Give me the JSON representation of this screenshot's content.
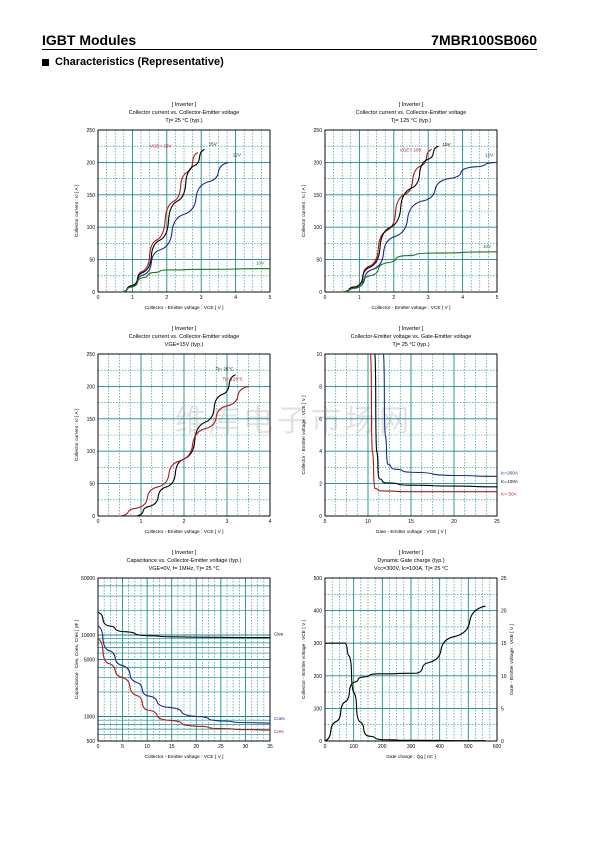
{
  "header": {
    "left": "IGBT Modules",
    "right": "7MBR100SB060"
  },
  "section_title": "Characteristics (Representative)",
  "watermark": "维库电子市场网",
  "colors": {
    "grid": "#1a8a8a",
    "blue": "#1a2a8c",
    "red": "#b01818",
    "green": "#1a7a1a",
    "black": "#000000"
  },
  "chart_data": [
    {
      "type": "line",
      "title": [
        "[ Inverter ]",
        "Collector current  vs.  Collector-Emitter voltage",
        "Tj= 25 °C  (typ.)"
      ],
      "xlabel": "Collector - Emitter voltage  :  VCE  [ V ]",
      "ylabel": "Collector current  :  Ic  [ A ]",
      "xlim": [
        0,
        5
      ],
      "ylim": [
        0,
        250
      ],
      "xticks": [
        0,
        1,
        2,
        3,
        4,
        5
      ],
      "yticks": [
        0,
        50,
        100,
        150,
        200,
        250
      ],
      "grid": true,
      "series": [
        {
          "name": "VGE= 20V",
          "color": "red",
          "points": [
            [
              0.7,
              0
            ],
            [
              1.0,
              10
            ],
            [
              1.3,
              32
            ],
            [
              1.7,
              80
            ],
            [
              2.2,
              140
            ],
            [
              2.6,
              185
            ],
            [
              2.9,
              215
            ]
          ]
        },
        {
          "name": "15V",
          "color": "black",
          "points": [
            [
              0.7,
              0
            ],
            [
              1.0,
              10
            ],
            [
              1.3,
              30
            ],
            [
              1.8,
              80
            ],
            [
              2.3,
              140
            ],
            [
              2.8,
              195
            ],
            [
              3.1,
              220
            ]
          ]
        },
        {
          "name": "12V",
          "color": "blue",
          "points": [
            [
              0.7,
              0
            ],
            [
              1.0,
              8
            ],
            [
              1.3,
              26
            ],
            [
              1.8,
              65
            ],
            [
              2.5,
              120
            ],
            [
              3.2,
              170
            ],
            [
              3.8,
              200
            ]
          ]
        },
        {
          "name": "10V",
          "color": "green",
          "points": [
            [
              0.7,
              0
            ],
            [
              1.0,
              8
            ],
            [
              1.3,
              22
            ],
            [
              1.6,
              30
            ],
            [
              2.0,
              34
            ],
            [
              3.0,
              35
            ],
            [
              5.0,
              36
            ]
          ]
        }
      ]
    },
    {
      "type": "line",
      "title": [
        "[ Inverter ]",
        "Collector current  vs.  Collector-Emitter voltage",
        "Tj= 125 °C  (typ.)"
      ],
      "xlabel": "Collector - Emitter voltage  :  VCE  [ V ]",
      "ylabel": "Collector current  :  Ic  [ A ]",
      "xlim": [
        0,
        5
      ],
      "ylim": [
        0,
        250
      ],
      "xticks": [
        0,
        1,
        2,
        3,
        4,
        5
      ],
      "yticks": [
        0,
        50,
        100,
        150,
        200,
        250
      ],
      "grid": true,
      "series": [
        {
          "name": "VGE= 20V",
          "color": "red",
          "points": [
            [
              0.5,
              0
            ],
            [
              0.9,
              8
            ],
            [
              1.3,
              40
            ],
            [
              1.8,
              95
            ],
            [
              2.3,
              150
            ],
            [
              2.8,
              195
            ],
            [
              3.1,
              220
            ]
          ]
        },
        {
          "name": "15V",
          "color": "black",
          "points": [
            [
              0.5,
              0
            ],
            [
              0.9,
              8
            ],
            [
              1.3,
              38
            ],
            [
              1.9,
              100
            ],
            [
              2.5,
              160
            ],
            [
              3.0,
              205
            ],
            [
              3.3,
              225
            ]
          ]
        },
        {
          "name": "12V",
          "color": "blue",
          "points": [
            [
              0.5,
              0
            ],
            [
              0.9,
              6
            ],
            [
              1.4,
              35
            ],
            [
              2.0,
              85
            ],
            [
              2.8,
              140
            ],
            [
              3.6,
              175
            ],
            [
              4.3,
              193
            ],
            [
              5.0,
              200
            ]
          ]
        },
        {
          "name": "10V",
          "color": "green",
          "points": [
            [
              0.5,
              0
            ],
            [
              0.9,
              6
            ],
            [
              1.3,
              25
            ],
            [
              1.8,
              45
            ],
            [
              2.3,
              56
            ],
            [
              3.0,
              60
            ],
            [
              5.0,
              62
            ]
          ]
        }
      ]
    },
    {
      "type": "line",
      "title": [
        "[ Inverter ]",
        "Collector current  vs.  Collector-Emitter voltage",
        "VGE=15V  (typ.)"
      ],
      "xlabel": "Collector - Emitter voltage  :  VCE  [ V ]",
      "ylabel": "Collector current  :  Ic  [ A ]",
      "xlim": [
        0,
        4
      ],
      "ylim": [
        0,
        250
      ],
      "xticks": [
        0,
        1,
        2,
        3,
        4
      ],
      "yticks": [
        0,
        50,
        100,
        150,
        200,
        250
      ],
      "grid": true,
      "series": [
        {
          "name": "Tj= 25°C",
          "color": "black",
          "points": [
            [
              0.9,
              0
            ],
            [
              1.2,
              15
            ],
            [
              1.6,
              45
            ],
            [
              2.0,
              88
            ],
            [
              2.5,
              145
            ],
            [
              2.9,
              188
            ],
            [
              3.2,
              218
            ]
          ]
        },
        {
          "name": "Tj= 125°C",
          "color": "red",
          "points": [
            [
              0.5,
              0
            ],
            [
              0.9,
              12
            ],
            [
              1.4,
              45
            ],
            [
              1.9,
              85
            ],
            [
              2.5,
              135
            ],
            [
              3.0,
              170
            ],
            [
              3.5,
              200
            ]
          ]
        }
      ]
    },
    {
      "type": "line",
      "title": [
        "[ Inverter ]",
        "Collector-Emitter voltage  vs.  Gate-Emitter voltage",
        "Tj= 25 °C  (typ.)"
      ],
      "xlabel": "Gate - Emitter voltage  :  VGE  [ V ]",
      "ylabel": "Collector - Emitter voltage  :  VCE  [ V ]",
      "xlim": [
        5,
        25
      ],
      "ylim": [
        0,
        10
      ],
      "xticks": [
        5,
        10,
        15,
        20,
        25
      ],
      "yticks": [
        0,
        2,
        4,
        6,
        8,
        10
      ],
      "grid": true,
      "series": [
        {
          "name": "Ic=200A",
          "color": "blue",
          "points": [
            [
              11.8,
              10
            ],
            [
              12.0,
              5
            ],
            [
              12.3,
              3.2
            ],
            [
              13,
              2.9
            ],
            [
              15,
              2.7
            ],
            [
              20,
              2.5
            ],
            [
              25,
              2.45
            ]
          ]
        },
        {
          "name": "Ic=100A",
          "color": "black",
          "points": [
            [
              10.8,
              10
            ],
            [
              11.0,
              4
            ],
            [
              11.3,
              2.3
            ],
            [
              12,
              2.05
            ],
            [
              15,
              1.9
            ],
            [
              20,
              1.85
            ],
            [
              25,
              1.8
            ]
          ]
        },
        {
          "name": "Ic= 50A",
          "color": "red",
          "points": [
            [
              10.3,
              10
            ],
            [
              10.5,
              4
            ],
            [
              10.8,
              1.7
            ],
            [
              11.5,
              1.55
            ],
            [
              15,
              1.5
            ],
            [
              20,
              1.5
            ],
            [
              25,
              1.5
            ]
          ]
        }
      ]
    },
    {
      "type": "line",
      "log_y": true,
      "title": [
        "[ Inverter ]",
        "Capacitance  vs.  Collector-Emitter voltage  (typ.)",
        "VGE=0V,  f= 1MHz,  Tj= 25  °C"
      ],
      "xlabel": "Collector - Emitter voltage  :  VCE  [ V ]",
      "ylabel": "Capacitance  :  Cies, Coes, Cres  [ pF ]",
      "xlim": [
        0,
        35
      ],
      "ylim": [
        500,
        50000
      ],
      "xticks": [
        0,
        5,
        10,
        15,
        20,
        25,
        30,
        35
      ],
      "yticks": [
        500,
        1000,
        5000,
        10000,
        50000
      ],
      "grid": true,
      "series": [
        {
          "name": "Cies",
          "color": "black",
          "points": [
            [
              0,
              19000
            ],
            [
              2,
              13000
            ],
            [
              5,
              11000
            ],
            [
              10,
              9800
            ],
            [
              15,
              9500
            ],
            [
              20,
              9400
            ],
            [
              30,
              9300
            ],
            [
              35,
              9300
            ]
          ]
        },
        {
          "name": "Coes",
          "color": "blue",
          "points": [
            [
              0,
              13000
            ],
            [
              2,
              6500
            ],
            [
              5,
              4200
            ],
            [
              8,
              2600
            ],
            [
              10,
              1800
            ],
            [
              14,
              1300
            ],
            [
              20,
              1000
            ],
            [
              25,
              880
            ],
            [
              30,
              840
            ],
            [
              35,
              830
            ]
          ]
        },
        {
          "name": "Cres",
          "color": "red",
          "points": [
            [
              0,
              9000
            ],
            [
              2,
              4500
            ],
            [
              5,
              3000
            ],
            [
              8,
              1800
            ],
            [
              10,
              1200
            ],
            [
              14,
              900
            ],
            [
              20,
              760
            ],
            [
              25,
              710
            ],
            [
              30,
              690
            ],
            [
              35,
              680
            ]
          ]
        }
      ]
    },
    {
      "type": "line",
      "title": [
        "[ Inverter ]",
        "Dynamic Gate charge  (typ.)",
        "Vcc=300V, Ic=100A, Tj= 25  °C"
      ],
      "xlabel": "Gate charge  :  Qg  [ nC ]",
      "ylabel": "Collector - Emitter voltage  :  VCE  [ V ]",
      "ylabel_right": "Gate - Emitter voltage  :  VGE  [ V ]",
      "xlim": [
        0,
        600
      ],
      "ylim": [
        0,
        500
      ],
      "ylim_right": [
        0,
        25
      ],
      "xticks": [
        0,
        100,
        200,
        300,
        400,
        500,
        600
      ],
      "yticks": [
        0,
        100,
        200,
        300,
        400,
        500
      ],
      "yticks_right": [
        0,
        5,
        10,
        15,
        20,
        25
      ],
      "grid": true,
      "series": [
        {
          "name": "VCE",
          "color": "black",
          "axis": "left",
          "points": [
            [
              0,
              300
            ],
            [
              70,
              300
            ],
            [
              85,
              260
            ],
            [
              100,
              150
            ],
            [
              120,
              60
            ],
            [
              150,
              15
            ],
            [
              200,
              4
            ],
            [
              300,
              2
            ],
            [
              560,
              1
            ]
          ]
        },
        {
          "name": "VGE",
          "color": "black",
          "axis": "right",
          "points": [
            [
              0,
              0
            ],
            [
              40,
              3
            ],
            [
              70,
              6
            ],
            [
              100,
              9
            ],
            [
              130,
              9.8
            ],
            [
              180,
              10.3
            ],
            [
              320,
              10.4
            ],
            [
              360,
              12
            ],
            [
              450,
              16
            ],
            [
              560,
              20.7
            ]
          ]
        }
      ]
    }
  ]
}
